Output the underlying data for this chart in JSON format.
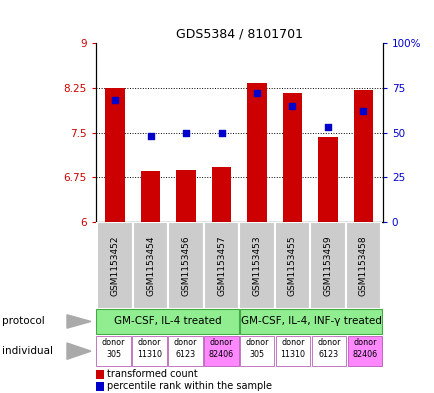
{
  "title": "GDS5384 / 8101701",
  "samples": [
    "GSM1153452",
    "GSM1153454",
    "GSM1153456",
    "GSM1153457",
    "GSM1153453",
    "GSM1153455",
    "GSM1153459",
    "GSM1153458"
  ],
  "bar_values": [
    8.25,
    6.85,
    6.88,
    6.93,
    8.33,
    8.17,
    7.43,
    8.22
  ],
  "bar_color": "#cc0000",
  "dot_values": [
    68,
    48,
    50,
    50,
    72,
    65,
    53,
    62
  ],
  "dot_color": "#0000cc",
  "ylim_left": [
    6,
    9
  ],
  "ylim_right": [
    0,
    100
  ],
  "yticks_left": [
    6,
    6.75,
    7.5,
    8.25,
    9
  ],
  "ytick_labels_left": [
    "6",
    "6.75",
    "7.5",
    "8.25",
    "9"
  ],
  "yticks_right": [
    0,
    25,
    50,
    75,
    100
  ],
  "ytick_labels_right": [
    "0",
    "25",
    "50",
    "75",
    "100%"
  ],
  "left_ycolor": "#cc0000",
  "right_ycolor": "#0000cc",
  "grid_values": [
    6.75,
    7.5,
    8.25
  ],
  "protocol_labels": [
    "GM-CSF, IL-4 treated",
    "GM-CSF, IL-4, INF-γ treated"
  ],
  "protocol_color": "#90ee90",
  "individual_colors": [
    "#ffffff",
    "#ffffff",
    "#ffffff",
    "#ff88ff",
    "#ffffff",
    "#ffffff",
    "#ffffff",
    "#ff88ff"
  ],
  "individual_labels": [
    "donor\n305",
    "donor\n11310",
    "donor\n6123",
    "donor\n82406",
    "donor\n305",
    "donor\n11310",
    "donor\n6123",
    "donor\n82406"
  ],
  "sample_bg_color": "#cccccc",
  "legend_bar_label": "transformed count",
  "legend_dot_label": "percentile rank within the sample",
  "bar_width": 0.55,
  "figsize": [
    4.35,
    3.93
  ],
  "dpi": 100
}
